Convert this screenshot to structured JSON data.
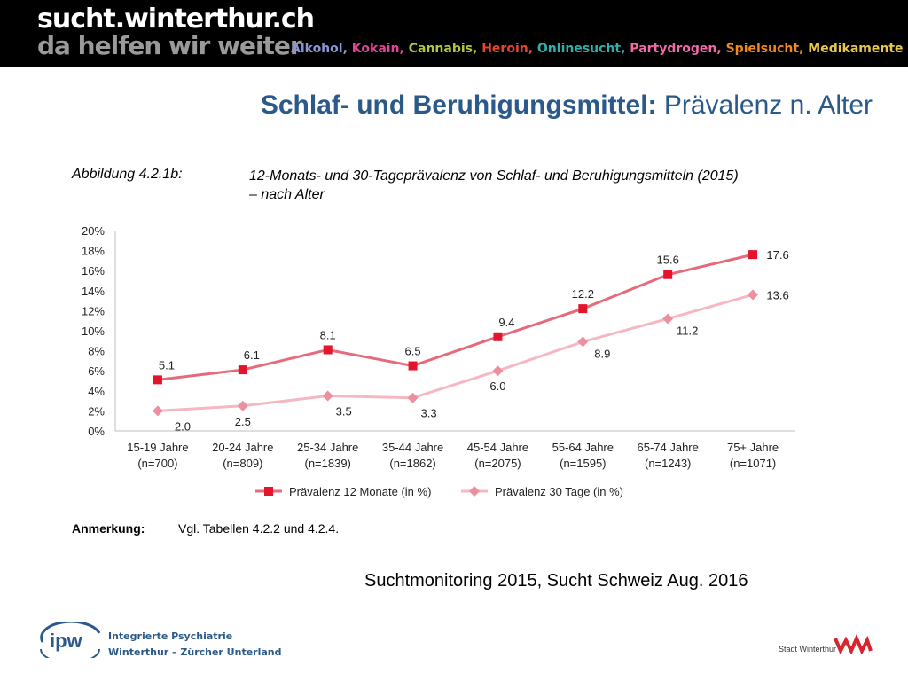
{
  "header": {
    "site_name": "sucht.winterthur.ch",
    "tagline": "da helfen wir weiter",
    "topics": [
      {
        "label": "Alkohol",
        "color": "#8a95d6"
      },
      {
        "label": "Kokain",
        "color": "#e0449a"
      },
      {
        "label": "Cannabis",
        "color": "#b6c63c"
      },
      {
        "label": "Heroin",
        "color": "#e8452d"
      },
      {
        "label": "Onlinesucht",
        "color": "#2fb0a8"
      },
      {
        "label": "Partydrogen",
        "color": "#ef6aa6"
      },
      {
        "label": "Spielsucht",
        "color": "#f08a1e"
      },
      {
        "label": "Medikamente",
        "color": "#e8c84a"
      }
    ]
  },
  "slide": {
    "title_bold": "Schlaf- und Beruhigungsmittel:",
    "title_rest": " Prävalenz n. Alter"
  },
  "figure": {
    "label": "Abbildung 4.2.1b:",
    "title_line1": "12-Monats- und 30-Tageprävalenz von Schlaf- und Beruhigungsmitteln (2015)",
    "title_line2": "– nach Alter"
  },
  "chart_data": {
    "type": "line",
    "title": "12-Monats- und 30-Tageprävalenz von Schlaf- und Beruhigungsmitteln (2015) – nach Alter",
    "categories": [
      [
        "15-19 Jahre",
        "(n=700)"
      ],
      [
        "20-24 Jahre",
        "(n=809)"
      ],
      [
        "25-34 Jahre",
        "(n=1839)"
      ],
      [
        "35-44 Jahre",
        "(n=1862)"
      ],
      [
        "45-54 Jahre",
        "(n=2075)"
      ],
      [
        "55-64 Jahre",
        "(n=1595)"
      ],
      [
        "65-74 Jahre",
        "(n=1243)"
      ],
      [
        "75+ Jahre",
        "(n=1071)"
      ]
    ],
    "series": [
      {
        "name": "Prävalenz 12 Monate (in %)",
        "values": [
          5.1,
          6.1,
          8.1,
          6.5,
          9.4,
          12.2,
          15.6,
          17.6
        ],
        "labels": [
          "5.1",
          "6.1",
          "8.1",
          "6.5",
          "9.4",
          "12.2",
          "15.6",
          "17.6"
        ],
        "color": "#e56b7c",
        "marker_color": "#e4142b",
        "marker": "square"
      },
      {
        "name": "Prävalenz 30 Tage (in %)",
        "values": [
          2.0,
          2.5,
          3.5,
          3.3,
          6.0,
          8.9,
          11.2,
          13.6
        ],
        "labels": [
          "2.0",
          "2.5",
          "3.5",
          "3.3",
          "6.0",
          "8.9",
          "11.2",
          "13.6"
        ],
        "color": "#f5b8c2",
        "marker_color": "#ee8f9f",
        "marker": "diamond"
      }
    ],
    "yticks": [
      "0%",
      "2%",
      "4%",
      "6%",
      "8%",
      "10%",
      "12%",
      "14%",
      "16%",
      "18%",
      "20%"
    ],
    "ylim": [
      0,
      20
    ],
    "grid": false,
    "legend": "bottom",
    "xlabel": "",
    "ylabel": ""
  },
  "note": {
    "label": "Anmerkung:",
    "text": "Vgl. Tabellen 4.2.2 und 4.2.4."
  },
  "source": "Suchtmonitoring 2015, Sucht Schweiz Aug. 2016",
  "footer": {
    "ipw_logo_text": "ipw",
    "ipw_line1": "Integrierte Psychiatrie",
    "ipw_line2": "Winterthur – Zürcher Unterland",
    "city_name": "Stadt Winterthur"
  }
}
